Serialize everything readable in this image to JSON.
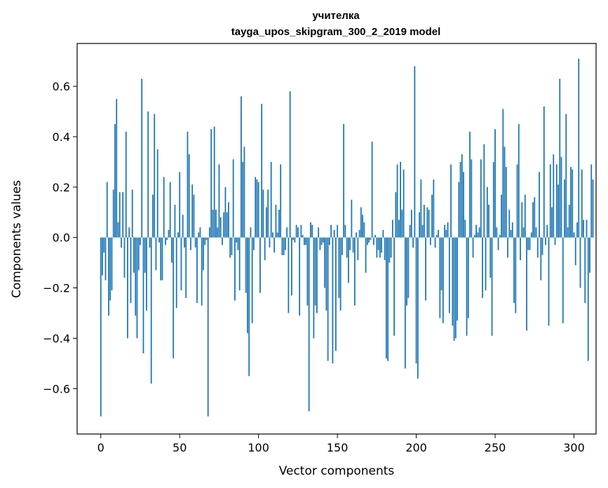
{
  "chart_data": {
    "type": "bar",
    "title": "учителка",
    "subtitle": "tayga_upos_skipgram_300_2_2019 model",
    "xlabel": "Vector components",
    "ylabel": "Components values",
    "xlim": [
      -15,
      314
    ],
    "ylim": [
      -0.78,
      0.77
    ],
    "xticks": [
      0,
      50,
      100,
      150,
      200,
      250,
      300
    ],
    "yticks": [
      -0.6,
      -0.4,
      -0.2,
      0.0,
      0.2,
      0.4,
      0.6
    ],
    "xtick_labels": [
      "0",
      "50",
      "100",
      "150",
      "200",
      "250",
      "300"
    ],
    "ytick_labels": [
      "−0.6",
      "−0.4",
      "−0.2",
      "0.0",
      "0.2",
      "0.4",
      "0.6"
    ],
    "bar_color": "#1f77b4",
    "grid": false,
    "values": [
      -0.71,
      -0.15,
      -0.06,
      -0.17,
      0.22,
      -0.31,
      -0.25,
      -0.21,
      0.19,
      0.45,
      0.55,
      0.06,
      0.18,
      -0.04,
      0.18,
      -0.16,
      0.42,
      -0.4,
      0.04,
      -0.26,
      0.19,
      -0.14,
      -0.31,
      -0.4,
      -0.13,
      -0.03,
      0.63,
      -0.46,
      -0.14,
      -0.29,
      0.5,
      -0.04,
      -0.58,
      0.17,
      0.49,
      -0.13,
      0.35,
      -0.02,
      -0.17,
      -0.17,
      0.24,
      -0.03,
      -0.01,
      0.03,
      0.22,
      -0.1,
      -0.48,
      0.13,
      -0.28,
      0.02,
      0.26,
      -0.21,
      0.09,
      -0.04,
      -0.24,
      0.42,
      0.33,
      -0.05,
      0.21,
      0.17,
      -0.04,
      -0.26,
      0.02,
      0.04,
      -0.27,
      -0.13,
      -0.03,
      -0.01,
      -0.71,
      0.04,
      0.43,
      0.11,
      0.44,
      0.11,
      0.04,
      0.29,
      0.08,
      -0.03,
      0.1,
      0.2,
      0.1,
      0.14,
      -0.08,
      -0.07,
      0.31,
      -0.25,
      -0.02,
      -0.05,
      -0.21,
      0.56,
      0.3,
      0.36,
      -0.22,
      -0.38,
      -0.55,
      0.04,
      -0.34,
      -0.05,
      0.24,
      0.23,
      0.22,
      -0.22,
      0.53,
      0.19,
      -0.09,
      0.12,
      0.19,
      -0.04,
      0.3,
      0.02,
      -0.06,
      0.13,
      0.02,
      0.11,
      0.29,
      -0.07,
      -0.07,
      -0.05,
      0.04,
      -0.3,
      0.58,
      -0.23,
      -0.01,
      -0.02,
      0.05,
      0.04,
      -0.31,
      0.05,
      0.01,
      -0.03,
      -0.03,
      -0.27,
      -0.69,
      0.06,
      0.05,
      -0.4,
      -0.27,
      -0.3,
      0.04,
      -0.05,
      -0.03,
      -0.02,
      -0.2,
      -0.29,
      -0.49,
      -0.03,
      0.05,
      -0.5,
      0.03,
      -0.45,
      0.05,
      -0.24,
      -0.29,
      -0.07,
      0.45,
      0.05,
      -0.08,
      -0.18,
      -0.05,
      0.15,
      -0.06,
      -0.27,
      0.02,
      -0.09,
      0.03,
      0.12,
      0.09,
      0.06,
      -0.14,
      -0.03,
      -0.02,
      -0.01,
      0.38,
      -0.03,
      0.01,
      -0.08,
      -0.05,
      -0.08,
      -0.06,
      0.03,
      -0.09,
      -0.48,
      -0.49,
      -0.1,
      -0.08,
      0.07,
      -0.39,
      0.18,
      0.29,
      0.07,
      0.3,
      0.11,
      0.27,
      -0.52,
      -0.27,
      -0.24,
      0.05,
      0.11,
      -0.04,
      0.68,
      -0.5,
      -0.56,
      0.1,
      0.23,
      0.05,
      0.13,
      -0.25,
      0.12,
      0.11,
      -0.03,
      0.17,
      0.23,
      -0.04,
      0.01,
      0.03,
      -0.32,
      -0.21,
      -0.34,
      0.05,
      0.03,
      0.06,
      -0.3,
      0.29,
      -0.35,
      -0.41,
      -0.4,
      -0.33,
      0.22,
      0.3,
      0.33,
      0.26,
      0.07,
      -0.39,
      -0.32,
      0.42,
      0.31,
      -0.08,
      0.01,
      0.05,
      0.02,
      0.04,
      0.31,
      -0.24,
      0.37,
      -0.21,
      0.2,
      0.13,
      -0.16,
      -0.39,
      0.3,
      0.43,
      0.04,
      -0.05,
      0.01,
      0.17,
      0.51,
      0.36,
      0.28,
      -0.08,
      0.11,
      0.03,
      0.06,
      -0.26,
      -0.3,
      0.29,
      0.45,
      -0.09,
      0.14,
      0.04,
      0.17,
      -0.37,
      -0.05,
      -0.05,
      0.02,
      0.14,
      0.16,
      0.04,
      -0.08,
      0.26,
      -0.17,
      -0.07,
      0.52,
      -0.03,
      0.05,
      -0.35,
      0.29,
      0.12,
      0.33,
      -0.03,
      0.29,
      0.21,
      0.63,
      0.32,
      -0.34,
      0.23,
      0.49,
      0.04,
      0.13,
      0.28,
      0.27,
      0.02,
      -0.11,
      0.06,
      0.71,
      -0.2,
      0.27,
      0.07,
      -0.26,
      0.07,
      -0.49,
      -0.14,
      0.29,
      0.23
    ]
  }
}
